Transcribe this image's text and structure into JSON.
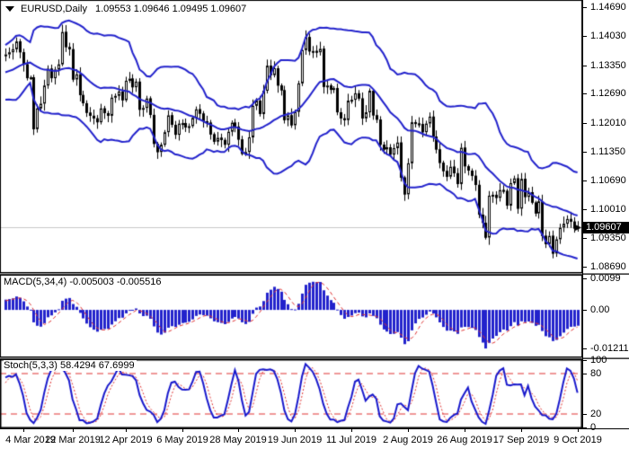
{
  "window": {
    "title_symbol": "EURUSD,Daily",
    "ohlc": "1.09553 1.09646 1.09495 1.09607"
  },
  "colors": {
    "band_blue": "#2222cc",
    "candle_outline": "#000000",
    "bull_fill": "#ffffff",
    "bear_fill": "#000000",
    "macd_bar": "#2222cc",
    "signal_red": "#e03232",
    "stoch_k_blue": "#1818cc",
    "stoch_d_red": "#e03232",
    "level_red": "#e03232",
    "price_line_gray": "#c8c8c8",
    "price_tag_bg": "#000000",
    "price_tag_fg": "#ffffff",
    "axis_text": "#000000"
  },
  "chart_data": {
    "type": "candlestick-with-indicators",
    "symbol": "EURUSD",
    "timeframe": "Daily",
    "main": {
      "type": "candlestick",
      "current_price": 1.09607,
      "current_price_label": "1.09607",
      "y_axis": {
        "labels": [
          "1.14690",
          "1.14030",
          "1.13350",
          "1.12690",
          "1.12010",
          "1.11350",
          "1.10690",
          "1.10010",
          "1.09350",
          "1.08690"
        ],
        "values": [
          1.1469,
          1.1403,
          1.1335,
          1.1269,
          1.1201,
          1.1135,
          1.1069,
          1.1001,
          1.0935,
          1.0869
        ],
        "range": [
          1.0854,
          1.1486
        ]
      },
      "bollinger": {
        "period": 20,
        "deviations": 2
      },
      "warmup_closes": [
        1.1305,
        1.132,
        1.1297,
        1.1275,
        1.1264,
        1.1258,
        1.127,
        1.129,
        1.1325,
        1.1332,
        1.134,
        1.133,
        1.1338,
        1.1345,
        1.133,
        1.1336,
        1.1342,
        1.1355,
        1.136
      ],
      "closes": [
        1.136,
        1.1365,
        1.1372,
        1.139,
        1.1365,
        1.1337,
        1.1305,
        1.1307,
        1.1187,
        1.1235,
        1.1246,
        1.1288,
        1.1327,
        1.1305,
        1.1325,
        1.1337,
        1.1412,
        1.1377,
        1.1372,
        1.1302,
        1.1314,
        1.1266,
        1.1247,
        1.1225,
        1.1218,
        1.1212,
        1.1203,
        1.1235,
        1.1224,
        1.1218,
        1.126,
        1.1264,
        1.1274,
        1.1254,
        1.1299,
        1.1304,
        1.1284,
        1.1297,
        1.1232,
        1.1236,
        1.1258,
        1.122,
        1.1153,
        1.1134,
        1.1151,
        1.118,
        1.1219,
        1.1197,
        1.1174,
        1.12,
        1.1201,
        1.1191,
        1.1194,
        1.1213,
        1.1233,
        1.1223,
        1.1205,
        1.1202,
        1.1175,
        1.1158,
        1.1167,
        1.1162,
        1.1151,
        1.1181,
        1.1202,
        1.1193,
        1.1163,
        1.113,
        1.1134,
        1.1168,
        1.1241,
        1.1253,
        1.1222,
        1.1276,
        1.1334,
        1.1312,
        1.1328,
        1.1288,
        1.1277,
        1.1208,
        1.1219,
        1.1196,
        1.1227,
        1.1293,
        1.137,
        1.14,
        1.1367,
        1.1368,
        1.1365,
        1.1373,
        1.1285,
        1.1288,
        1.1278,
        1.1282,
        1.1226,
        1.1212,
        1.1208,
        1.1253,
        1.1255,
        1.127,
        1.1258,
        1.1212,
        1.1226,
        1.1276,
        1.1219,
        1.1209,
        1.1151,
        1.114,
        1.1145,
        1.1128,
        1.1143,
        1.1156,
        1.1075,
        1.1036,
        1.1108,
        1.1203,
        1.12,
        1.1199,
        1.118,
        1.12,
        1.1216,
        1.117,
        1.114,
        1.1109,
        1.109,
        1.1077,
        1.11,
        1.1085,
        1.106,
        1.1144,
        1.1101,
        1.1091,
        1.1079,
        1.1058,
        1.0989,
        1.097,
        1.0936,
        1.1033,
        1.1035,
        1.1028,
        1.1046,
        1.1044,
        1.101,
        1.1062,
        1.1073,
        1.1003,
        1.1072,
        1.103,
        1.1041,
        1.1017,
        1.0992,
        1.102,
        1.094,
        1.0921,
        1.094,
        1.0899,
        1.0932,
        1.0959,
        1.0968,
        1.0979,
        1.0973,
        1.0957,
        1.0961
      ]
    },
    "x_axis": {
      "labels": [
        "4 Mar 2019",
        "22 Mar 2019",
        "12 Apr 2019",
        "6 May 2019",
        "28 May 2019",
        "19 Jun 2019",
        "11 Jul 2019",
        "2 Aug 2019",
        "26 Aug 2019",
        "17 Sep 2019",
        "9 Oct 2019"
      ],
      "bar_index": [
        5,
        19,
        34,
        50,
        66,
        82,
        98,
        114,
        130,
        146,
        162
      ]
    },
    "macd": {
      "type": "bar",
      "label": "MACD(5,34,4)",
      "values_text": "-0.005003 -0.005516",
      "params": {
        "fast": 5,
        "slow": 34,
        "signal": 4
      },
      "min": -0.012115,
      "max": 0.0099,
      "y_axis": {
        "labels": [
          "0.0099",
          "0.00",
          "-0.012115"
        ],
        "values": [
          0.0099,
          0,
          -0.012115
        ],
        "range": [
          -0.01492,
          0.01103
        ]
      }
    },
    "stoch": {
      "type": "line",
      "label": "Stoch(5,3,3)",
      "values_text": "58.4294 67.6999",
      "params": {
        "k": 5,
        "slowing": 3,
        "d": 3
      },
      "levels": [
        80,
        20
      ],
      "y_axis": {
        "labels": [
          "100",
          "80",
          "20",
          "0"
        ],
        "values": [
          100,
          80,
          20,
          0
        ],
        "range": [
          0,
          100
        ]
      }
    }
  }
}
